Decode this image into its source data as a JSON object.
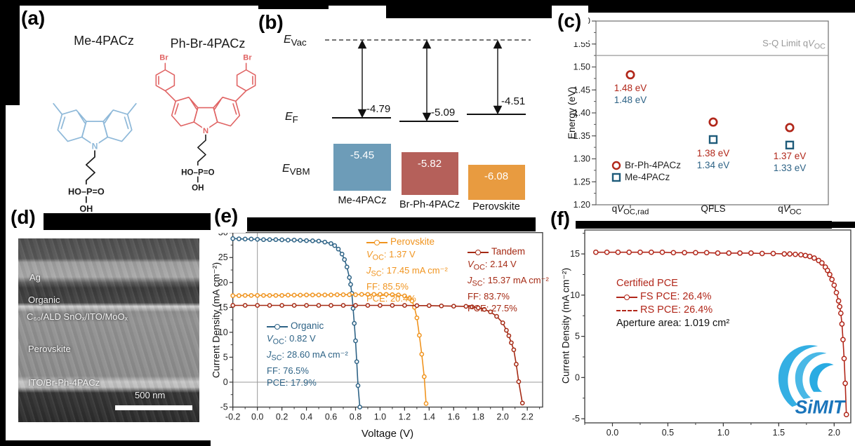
{
  "panel_labels": {
    "a": "(a)",
    "b": "(b)",
    "c": "(c)",
    "d": "(d)",
    "e": "(e)",
    "f": "(f)"
  },
  "panel_a": {
    "left_molecule": {
      "name": "Me-4PACz",
      "color": "#8fb9d9"
    },
    "right_molecule": {
      "name": "Ph-Br-4PACz",
      "color": "#e06363",
      "br": "Br"
    },
    "n_label": "N",
    "phosphonic": "HO–P=O",
    "hydroxyl": "OH"
  },
  "panel_b": {
    "evac_html": "<i>E</i><sub>Vac</sub>",
    "ef_html": "<i>E</i><sub>F</sub>",
    "evbm_html": "<i>E</i><sub>VBM</sub>",
    "fermi": [
      {
        "material": "Me-4PACz",
        "value": "-4.79"
      },
      {
        "material": "Br-Ph-4PACz",
        "value": "-5.09"
      },
      {
        "material": "Perovskite",
        "value": "-4.51"
      }
    ],
    "vbm": [
      {
        "material": "Me-4PACz",
        "value": "-5.45",
        "color": "#6d9cb8"
      },
      {
        "material": "Br-Ph-4PACz",
        "value": "-5.82",
        "color": "#b5605a"
      },
      {
        "material": "Perovskite",
        "value": "-6.08",
        "color": "#e89b40"
      }
    ]
  },
  "panel_d": {
    "layers": [
      "Ag",
      "Organic",
      "C₆₀/ALD SnOₓ/ITO/MoOₓ",
      "Perovskite",
      "ITO/Br-Ph-4PACz"
    ],
    "scale_bar": "500 nm"
  },
  "chart_data": [
    {
      "id": "panel_c",
      "type": "scatter",
      "ylabel": "Energy (eV)",
      "ylim": [
        1.2,
        1.6
      ],
      "yticks": [
        1.2,
        1.25,
        1.3,
        1.35,
        1.4,
        1.45,
        1.5,
        1.55,
        1.6
      ],
      "ytick_labels": [
        "1.20",
        "1.25",
        "1.30",
        "1.35",
        "1.40",
        "1.45",
        "1.50",
        "1.55",
        "1.60"
      ],
      "categories_html": [
        "q<i>V</i><sub>OC,rad</sub>",
        "QFLS",
        "q<i>V</i><sub>OC</sub>"
      ],
      "sq_limit": {
        "value": 1.525,
        "label_html": "S-Q Limit q<i>V</i><sub>OC</sub>",
        "color": "#9a9a9a"
      },
      "series": [
        {
          "name": "Me-4PACz",
          "marker": "square",
          "color": "#1e5b7a",
          "values": [
            null,
            1.342,
            1.33
          ]
        },
        {
          "name": "Br-Ph-4PACz",
          "marker": "circle",
          "color": "#b1271a",
          "values": [
            1.483,
            1.38,
            1.368
          ]
        }
      ],
      "annotations": [
        [
          {
            "text": "1.48 eV",
            "color": "#b1271a"
          },
          {
            "text": "1.48 eV",
            "color": "#2e6386"
          }
        ],
        [
          {
            "text": "1.38 eV",
            "color": "#b1271a"
          },
          {
            "text": "1.34 eV",
            "color": "#2e6386"
          }
        ],
        [
          {
            "text": "1.37 eV",
            "color": "#b1271a"
          },
          {
            "text": "1.33 eV",
            "color": "#2e6386"
          }
        ]
      ],
      "legend": [
        {
          "name": "Br-Ph-4PACz",
          "marker": "circle",
          "color": "#b1271a"
        },
        {
          "name": "Me-4PACz",
          "marker": "square",
          "color": "#1e5b7a"
        }
      ]
    },
    {
      "id": "panel_e",
      "type": "line",
      "xlabel": "Voltage (V)",
      "ylabel": "Current Density (mA cm⁻²)",
      "xlim": [
        -0.2,
        2.325
      ],
      "ylim": [
        -5,
        30
      ],
      "xticks": [
        -0.2,
        0,
        0.2,
        0.4,
        0.6,
        0.8,
        1,
        1.2,
        1.4,
        1.6,
        1.8,
        2,
        2.2
      ],
      "xtick_labels": [
        "-0.2",
        "0.0",
        "0.2",
        "0.4",
        "0.6",
        "0.8",
        "1.0",
        "1.2",
        "1.4",
        "1.6",
        "1.8",
        "2.0",
        "2.2"
      ],
      "yticks": [
        -5,
        0,
        5,
        10,
        15,
        20,
        25,
        30
      ],
      "ytick_labels": [
        "-5",
        "0",
        "5",
        "10",
        "15",
        "20",
        "25",
        "30"
      ],
      "series": [
        {
          "name": "Organic",
          "color": "#2e6386",
          "voc_html": "<i>V</i><sub>OC</sub>: 0.82 V",
          "jsc_html": "<i>J</i><sub>SC</sub>: 28.60 mA cm⁻²",
          "ff": "FF: 76.5%",
          "pce": "PCE: 17.9%",
          "points": [
            [
              -0.2,
              28.8
            ],
            [
              -0.15,
              28.75
            ],
            [
              -0.1,
              28.7
            ],
            [
              -0.05,
              28.7
            ],
            [
              0,
              28.65
            ],
            [
              0.05,
              28.6
            ],
            [
              0.1,
              28.6
            ],
            [
              0.15,
              28.6
            ],
            [
              0.2,
              28.55
            ],
            [
              0.25,
              28.5
            ],
            [
              0.3,
              28.5
            ],
            [
              0.35,
              28.45
            ],
            [
              0.4,
              28.4
            ],
            [
              0.45,
              28.35
            ],
            [
              0.5,
              28.3
            ],
            [
              0.55,
              28.1
            ],
            [
              0.6,
              27.8
            ],
            [
              0.63,
              27.4
            ],
            [
              0.66,
              26.7
            ],
            [
              0.69,
              25.7
            ],
            [
              0.71,
              24.6
            ],
            [
              0.73,
              23.1
            ],
            [
              0.75,
              21.0
            ],
            [
              0.76,
              19.6
            ],
            [
              0.77,
              17.8
            ],
            [
              0.78,
              14.8
            ],
            [
              0.79,
              11.8
            ],
            [
              0.8,
              8.3
            ],
            [
              0.81,
              4.1
            ],
            [
              0.82,
              -0.7
            ],
            [
              0.835,
              -5.0
            ]
          ]
        },
        {
          "name": "Perovskite",
          "color": "#f0941f",
          "voc_html": "<i>V</i><sub>OC</sub>: 1.37 V",
          "jsc_html": "<i>J</i><sub>SC</sub>: 17.45 mA cm⁻²",
          "ff": "FF: 85.5%",
          "pce": "PCE: 20.4%",
          "points": [
            [
              -0.2,
              17.35
            ],
            [
              -0.15,
              17.35
            ],
            [
              -0.1,
              17.4
            ],
            [
              -0.05,
              17.4
            ],
            [
              0,
              17.4
            ],
            [
              0.05,
              17.4
            ],
            [
              0.1,
              17.4
            ],
            [
              0.15,
              17.4
            ],
            [
              0.2,
              17.4
            ],
            [
              0.25,
              17.45
            ],
            [
              0.3,
              17.45
            ],
            [
              0.35,
              17.45
            ],
            [
              0.4,
              17.5
            ],
            [
              0.45,
              17.5
            ],
            [
              0.5,
              17.5
            ],
            [
              0.55,
              17.5
            ],
            [
              0.6,
              17.5
            ],
            [
              0.65,
              17.55
            ],
            [
              0.7,
              17.55
            ],
            [
              0.75,
              17.55
            ],
            [
              0.8,
              17.55
            ],
            [
              0.85,
              17.6
            ],
            [
              0.9,
              17.6
            ],
            [
              0.95,
              17.6
            ],
            [
              1.0,
              17.6
            ],
            [
              1.05,
              17.6
            ],
            [
              1.1,
              17.55
            ],
            [
              1.15,
              17.5
            ],
            [
              1.2,
              17.3
            ],
            [
              1.24,
              16.8
            ],
            [
              1.26,
              16.3
            ],
            [
              1.28,
              15.0
            ],
            [
              1.3,
              12.9
            ],
            [
              1.32,
              9.4
            ],
            [
              1.34,
              5.6
            ],
            [
              1.36,
              1.1
            ],
            [
              1.375,
              -4.3
            ]
          ]
        },
        {
          "name": "Tandem",
          "color": "#a52a14",
          "voc_html": "<i>V</i><sub>OC</sub>: 2.14 V",
          "jsc_html": "<i>J</i><sub>SC</sub>: 15.37 mA cm⁻²",
          "ff": "FF: 83.7%",
          "pce": "PCE: 27.5%",
          "points": [
            [
              -0.2,
              15.4
            ],
            [
              -0.1,
              15.4
            ],
            [
              0,
              15.4
            ],
            [
              0.1,
              15.4
            ],
            [
              0.2,
              15.4
            ],
            [
              0.3,
              15.4
            ],
            [
              0.4,
              15.4
            ],
            [
              0.5,
              15.4
            ],
            [
              0.6,
              15.4
            ],
            [
              0.7,
              15.4
            ],
            [
              0.8,
              15.4
            ],
            [
              0.9,
              15.4
            ],
            [
              1.0,
              15.4
            ],
            [
              1.1,
              15.4
            ],
            [
              1.2,
              15.4
            ],
            [
              1.3,
              15.35
            ],
            [
              1.4,
              15.35
            ],
            [
              1.5,
              15.3
            ],
            [
              1.6,
              15.25
            ],
            [
              1.7,
              15.2
            ],
            [
              1.75,
              15.1
            ],
            [
              1.8,
              14.9
            ],
            [
              1.85,
              14.6
            ],
            [
              1.9,
              14.1
            ],
            [
              1.95,
              13.2
            ],
            [
              2.0,
              11.9
            ],
            [
              2.03,
              10.4
            ],
            [
              2.05,
              9.3
            ],
            [
              2.07,
              7.9
            ],
            [
              2.09,
              6.5
            ],
            [
              2.11,
              3.6
            ],
            [
              2.13,
              0.1
            ],
            [
              2.16,
              -4.2
            ]
          ]
        }
      ]
    },
    {
      "id": "panel_f",
      "type": "line",
      "ylabel": "Current Density (mA cm⁻²)",
      "xlim": [
        -0.25,
        2.15
      ],
      "ylim": [
        -5.5,
        17.9
      ],
      "xticks": [
        0,
        0.5,
        1,
        1.5,
        2
      ],
      "xtick_labels": [
        "0.0",
        "0.5",
        "1.0",
        "1.5",
        "2.0"
      ],
      "yticks": [
        -5,
        0,
        5,
        10,
        15
      ],
      "ytick_labels": [
        "-5",
        "0",
        "5",
        "10",
        "15"
      ],
      "legend": {
        "title": "Certified PCE",
        "fs": "FS PCE: 26.4%",
        "rs": "RS PCE: 26.4%",
        "aperture": "Aperture area: 1.019 cm²",
        "color": "#b1271a"
      },
      "series": [
        {
          "name": "FS",
          "color": "#b1271a",
          "points": [
            [
              -0.15,
              15.2
            ],
            [
              -0.05,
              15.2
            ],
            [
              0.05,
              15.2
            ],
            [
              0.15,
              15.2
            ],
            [
              0.25,
              15.2
            ],
            [
              0.35,
              15.2
            ],
            [
              0.45,
              15.2
            ],
            [
              0.55,
              15.15
            ],
            [
              0.65,
              15.15
            ],
            [
              0.75,
              15.15
            ],
            [
              0.85,
              15.15
            ],
            [
              0.95,
              15.1
            ],
            [
              1.05,
              15.1
            ],
            [
              1.15,
              15.1
            ],
            [
              1.25,
              15.1
            ],
            [
              1.35,
              15.05
            ],
            [
              1.45,
              15.05
            ],
            [
              1.55,
              15.0
            ],
            [
              1.6,
              15.0
            ],
            [
              1.65,
              14.95
            ],
            [
              1.7,
              14.9
            ],
            [
              1.74,
              14.8
            ],
            [
              1.78,
              14.7
            ],
            [
              1.82,
              14.5
            ],
            [
              1.86,
              14.2
            ],
            [
              1.89,
              13.9
            ],
            [
              1.92,
              13.4
            ],
            [
              1.94,
              13.0
            ],
            [
              1.96,
              12.5
            ],
            [
              1.98,
              11.9
            ],
            [
              2.0,
              11.2
            ],
            [
              2.02,
              10.3
            ],
            [
              2.04,
              9.3
            ],
            [
              2.05,
              8.6
            ],
            [
              2.06,
              7.8
            ],
            [
              2.07,
              6.5
            ],
            [
              2.08,
              4.6
            ],
            [
              2.09,
              2.3
            ],
            [
              2.1,
              -0.7
            ],
            [
              2.11,
              -4.5
            ]
          ]
        }
      ]
    }
  ],
  "logo": {
    "text": "SiMIT",
    "color": "#29abe2",
    "text_color": "#1b75bb"
  }
}
